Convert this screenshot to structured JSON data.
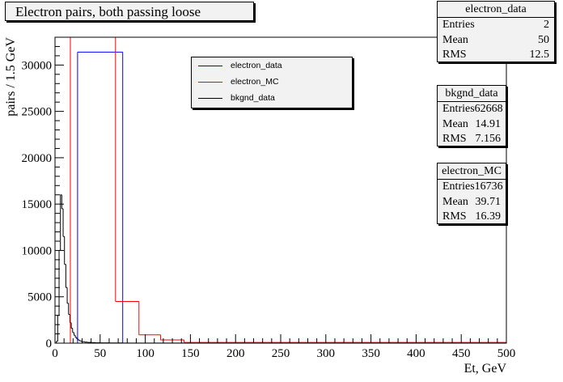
{
  "title": "Electron pairs, both passing loose",
  "stats": [
    {
      "name": "electron_data",
      "entries": "2",
      "mean": "50",
      "rms": "12.5"
    },
    {
      "name": "bkgnd_data",
      "entries": "62668",
      "mean": "14.91",
      "rms": "7.156"
    },
    {
      "name": "electron_MC",
      "entries": "16736",
      "mean": "39.71",
      "rms": "16.39"
    }
  ],
  "stat_labels": {
    "entries": "Entries",
    "mean": "Mean",
    "rms": "RMS"
  },
  "legend": [
    {
      "label": "electron_data",
      "color": "#0000ff"
    },
    {
      "label": "electron_MC",
      "color": "#ff0000"
    },
    {
      "label": "bkgnd_data",
      "color": "#000000"
    }
  ],
  "chart_data": {
    "type": "bar",
    "xlabel": "Et, GeV",
    "ylabel": "pairs / 1.5 GeV",
    "xlim": [
      0,
      500
    ],
    "ylim": [
      0,
      33000
    ],
    "x_ticks": [
      0,
      50,
      100,
      150,
      200,
      250,
      300,
      350,
      400,
      450,
      500
    ],
    "y_ticks": [
      0,
      5000,
      10000,
      15000,
      20000,
      25000,
      30000
    ],
    "series": [
      {
        "name": "electron_data",
        "color": "#0000ff",
        "bins": [
          [
            25,
            75,
            31400
          ]
        ]
      },
      {
        "name": "electron_MC",
        "color": "#ff0000",
        "bins": [
          [
            17,
            67,
            33000
          ],
          [
            67,
            93,
            4500
          ],
          [
            93,
            117,
            900
          ],
          [
            117,
            143,
            350
          ],
          [
            143,
            500,
            80
          ]
        ]
      },
      {
        "name": "bkgnd_data",
        "color": "#000000",
        "bins": [
          [
            0,
            1.5,
            0
          ],
          [
            1.5,
            3,
            200
          ],
          [
            3,
            4.5,
            3000
          ],
          [
            4.5,
            6,
            10000
          ],
          [
            6,
            7.5,
            16000
          ],
          [
            7.5,
            9,
            14500
          ],
          [
            9,
            10.5,
            11500
          ],
          [
            10.5,
            12,
            8500
          ],
          [
            12,
            13.5,
            6000
          ],
          [
            13.5,
            15,
            4300
          ],
          [
            15,
            16.5,
            3100
          ],
          [
            16.5,
            18,
            2200
          ],
          [
            18,
            19.5,
            1600
          ],
          [
            19.5,
            21,
            1150
          ],
          [
            21,
            22.5,
            850
          ],
          [
            22.5,
            24,
            620
          ],
          [
            24,
            25.5,
            460
          ],
          [
            25.5,
            27,
            350
          ],
          [
            27,
            28.5,
            260
          ],
          [
            28.5,
            30,
            200
          ],
          [
            30,
            33,
            150
          ],
          [
            33,
            36,
            110
          ],
          [
            36,
            40,
            80
          ],
          [
            40,
            45,
            60
          ],
          [
            45,
            50,
            40
          ],
          [
            50,
            60,
            30
          ],
          [
            60,
            75,
            20
          ],
          [
            75,
            100,
            12
          ],
          [
            100,
            150,
            6
          ],
          [
            150,
            500,
            2
          ]
        ]
      }
    ]
  }
}
